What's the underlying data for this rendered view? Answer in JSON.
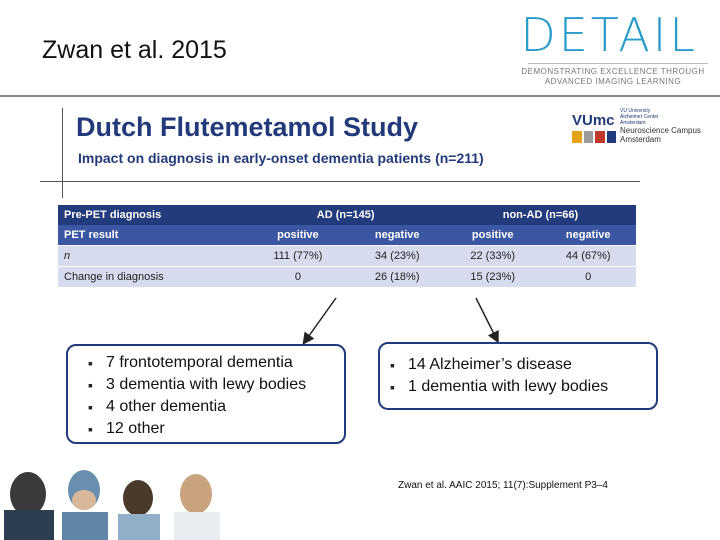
{
  "slide": {
    "title": "Zwan et al. 2015",
    "logo": {
      "word": "DETAIL",
      "tagline_1": "DEMONSTRATING EXCELLENCE THROUGH",
      "tagline_2": "ADVANCED IMAGING LEARNING"
    },
    "partner_logo": {
      "vumc": "VUmc",
      "vumc_sub_1": "VU University",
      "vumc_sub_2": "Alzheimer Center",
      "vumc_sub_3": "Amsterdam",
      "campus_1": "Neuroscience Campus",
      "campus_2": "Amsterdam",
      "stripe_colors": [
        "#e3a21a",
        "#9b9b9b",
        "#c0392b",
        "#223b7c"
      ]
    },
    "study_title": "Dutch Flutemetamol Study",
    "study_subtitle": "Impact on diagnosis in early-onset dementia patients (n=211)"
  },
  "table": {
    "header": {
      "label": "Pre-PET diagnosis",
      "ad": "AD (n=145)",
      "nonad": "non-AD (n=66)"
    },
    "subheader": {
      "label": "PET result",
      "c1": "positive",
      "c2": "negative",
      "c3": "positive",
      "c4": "negative"
    },
    "rows": [
      {
        "label": "n",
        "c1": "111 (77%)",
        "c2": "34 (23%)",
        "c3": "22 (33%)",
        "c4": "44 (67%)"
      },
      {
        "label": "Change in diagnosis",
        "c1": "0",
        "c2": "26 (18%)",
        "c3": "15 (23%)",
        "c4": "0"
      }
    ]
  },
  "ad_changes": [
    "7 frontotemporal dementia",
    "3 dementia with lewy bodies",
    "4 other dementia",
    "12 other"
  ],
  "nonad_changes": [
    "14 Alzheimer’s disease",
    "1 dementia with lewy bodies"
  ],
  "citation": "Zwan et al. AAIC 2015; 11(7):Supplement P3–4",
  "colors": {
    "navy": "#223b7c",
    "mid_blue": "#3b56a2",
    "light_row": "#d6dcee",
    "logo_blue": "#2a9cc9"
  }
}
